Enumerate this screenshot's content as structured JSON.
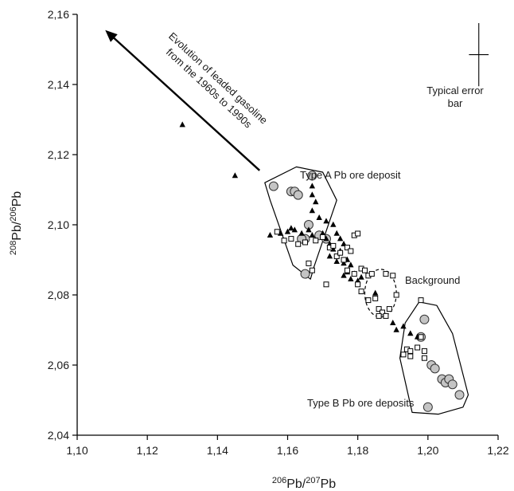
{
  "chart_data": {
    "type": "scatter",
    "xlabel": {
      "pre": "206",
      "a": "Pb/",
      "sup": "207",
      "b": "Pb"
    },
    "ylabel": {
      "pre": "208",
      "a": "Pb/",
      "sup": "206",
      "b": "Pb"
    },
    "xlim": [
      1.1,
      1.22
    ],
    "ylim": [
      2.04,
      2.16
    ],
    "x_ticks": [
      "1,10",
      "1,12",
      "1,14",
      "1,16",
      "1,18",
      "1,20",
      "1,22"
    ],
    "y_ticks": [
      "2,04",
      "2,06",
      "2,08",
      "2,10",
      "2,12",
      "2,14",
      "2,16"
    ],
    "annotations": {
      "arrow_line1": "Evolution of leaded gasoline",
      "arrow_line2": "from the 1960s to 1990s",
      "error_line1": "Typical error",
      "error_line2": "bar",
      "type_a": "Type A Pb ore deposit",
      "type_b": "Type B Pb ore deposits",
      "background": "Background"
    },
    "arrow": {
      "from": [
        1.152,
        2.1155
      ],
      "to": [
        1.108,
        2.1555
      ]
    },
    "error_bar": {
      "x": 1.2145,
      "y": 2.1485,
      "dx": 0.0028,
      "dy": 0.009
    },
    "regions": {
      "type_a": [
        [
          1.1535,
          2.112
        ],
        [
          1.1625,
          2.1165
        ],
        [
          1.17,
          2.115
        ],
        [
          1.174,
          2.107
        ],
        [
          1.1675,
          2.088
        ],
        [
          1.1665,
          2.0845
        ],
        [
          1.1615,
          2.0885
        ],
        [
          1.155,
          2.107
        ]
      ],
      "type_b": [
        [
          1.1975,
          2.078
        ],
        [
          1.2025,
          2.077
        ],
        [
          1.207,
          2.069
        ],
        [
          1.2115,
          2.0515
        ],
        [
          1.21,
          2.048
        ],
        [
          1.203,
          2.046
        ],
        [
          1.1955,
          2.0465
        ],
        [
          1.192,
          2.062
        ],
        [
          1.1935,
          2.072
        ]
      ],
      "background": {
        "cx": 1.1865,
        "cy": 2.0805,
        "rx": 0.0045,
        "ry": 0.0068
      }
    },
    "series": [
      {
        "marker": "circle",
        "x": [
          1.156,
          1.161,
          1.162,
          1.163,
          1.167,
          1.165,
          1.166,
          1.164,
          1.169,
          1.171,
          1.165,
          1.199,
          1.198,
          1.201,
          1.202,
          1.204,
          1.205,
          1.206,
          1.207,
          1.209,
          1.2
        ],
        "y": [
          2.111,
          2.1095,
          2.1095,
          2.1085,
          2.114,
          2.096,
          2.1,
          2.096,
          2.097,
          2.096,
          2.086,
          2.073,
          2.068,
          2.06,
          2.059,
          2.056,
          2.055,
          2.056,
          2.0545,
          2.0515,
          2.048
        ]
      },
      {
        "marker": "triangle",
        "x": [
          1.13,
          1.145,
          1.167,
          1.167,
          1.168,
          1.167,
          1.169,
          1.171,
          1.173,
          1.155,
          1.158,
          1.16,
          1.161,
          1.162,
          1.164,
          1.166,
          1.167,
          1.17,
          1.171,
          1.172,
          1.174,
          1.175,
          1.176,
          1.175,
          1.173,
          1.172,
          1.174,
          1.176,
          1.177,
          1.178,
          1.177,
          1.176,
          1.178,
          1.179,
          1.18,
          1.181,
          1.185,
          1.188,
          1.19,
          1.191,
          1.193,
          1.195,
          1.197
        ],
        "y": [
          2.1285,
          2.114,
          2.111,
          2.1085,
          2.1065,
          2.104,
          2.102,
          2.101,
          2.1,
          2.097,
          2.0975,
          2.098,
          2.099,
          2.0985,
          2.0975,
          2.0985,
          2.097,
          2.0975,
          2.096,
          2.0945,
          2.0975,
          2.096,
          2.0945,
          2.0925,
          2.093,
          2.091,
          2.0895,
          2.089,
          2.09,
          2.0885,
          2.0865,
          2.0855,
          2.0845,
          2.086,
          2.084,
          2.085,
          2.0805,
          2.074,
          2.072,
          2.07,
          2.071,
          2.069,
          2.068
        ]
      },
      {
        "marker": "square",
        "x": [
          1.157,
          1.159,
          1.161,
          1.163,
          1.165,
          1.168,
          1.17,
          1.172,
          1.173,
          1.174,
          1.175,
          1.176,
          1.177,
          1.178,
          1.179,
          1.18,
          1.177,
          1.179,
          1.181,
          1.182,
          1.183,
          1.184,
          1.18,
          1.181,
          1.183,
          1.185,
          1.186,
          1.187,
          1.189,
          1.186,
          1.188,
          1.19,
          1.191,
          1.188,
          1.198,
          1.198,
          1.194,
          1.195,
          1.197,
          1.199,
          1.193,
          1.195,
          1.199,
          1.167,
          1.166,
          1.171
        ],
        "y": [
          2.098,
          2.0955,
          2.096,
          2.0945,
          2.095,
          2.0955,
          2.0965,
          2.0935,
          2.094,
          2.091,
          2.092,
          2.09,
          2.0935,
          2.0925,
          2.097,
          2.0975,
          2.087,
          2.086,
          2.0875,
          2.087,
          2.0855,
          2.086,
          2.083,
          2.081,
          2.0785,
          2.079,
          2.076,
          2.075,
          2.076,
          2.074,
          2.086,
          2.0855,
          2.08,
          2.074,
          2.0785,
          2.068,
          2.0645,
          2.064,
          2.065,
          2.064,
          2.063,
          2.0625,
          2.062,
          2.087,
          2.089,
          2.083
        ]
      }
    ]
  }
}
